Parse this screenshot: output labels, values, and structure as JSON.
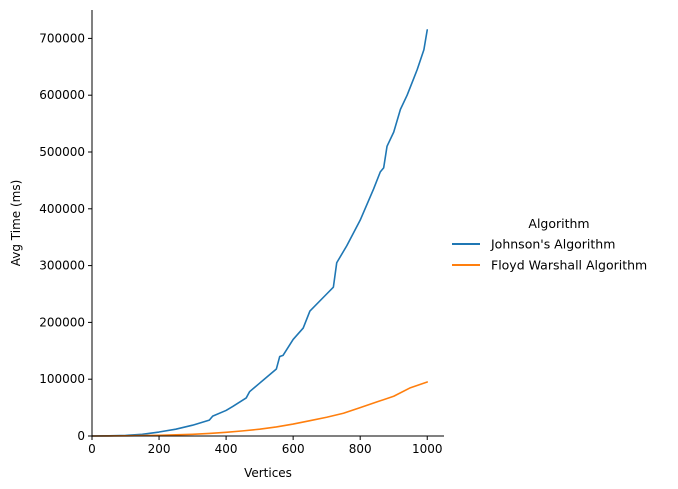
{
  "chart_data": {
    "type": "line",
    "title": "",
    "xlabel": "Vertices",
    "ylabel": "Avg Time (ms)",
    "xlim": [
      0,
      1050
    ],
    "ylim": [
      0,
      750000
    ],
    "xticks": [
      0,
      200,
      400,
      600,
      800,
      1000
    ],
    "yticks": [
      0,
      100000,
      200000,
      300000,
      400000,
      500000,
      600000,
      700000
    ],
    "grid": false,
    "legend": {
      "title": "Algorithm",
      "placement": "outside-right",
      "labels": [
        "Johnson's Algorithm",
        "Floyd Warshall Algorithm"
      ]
    },
    "series": [
      {
        "name": "Johnson's Algorithm",
        "color": "#1f77b4",
        "x": [
          0,
          50,
          100,
          150,
          200,
          250,
          300,
          350,
          360,
          400,
          420,
          460,
          470,
          500,
          550,
          560,
          570,
          600,
          630,
          650,
          700,
          720,
          730,
          760,
          800,
          840,
          860,
          870,
          880,
          900,
          920,
          940,
          960,
          970,
          990,
          1000
        ],
        "y": [
          0,
          300,
          1000,
          3000,
          7000,
          12000,
          19000,
          28000,
          35000,
          45000,
          52000,
          67000,
          78000,
          93000,
          118000,
          140000,
          142000,
          170000,
          190000,
          220000,
          250000,
          262000,
          305000,
          335000,
          380000,
          435000,
          465000,
          472000,
          510000,
          535000,
          575000,
          600000,
          630000,
          645000,
          680000,
          715000
        ]
      },
      {
        "name": "Floyd Warshall Algorithm",
        "color": "#ff7f0e",
        "x": [
          0,
          50,
          100,
          150,
          200,
          250,
          300,
          350,
          400,
          450,
          500,
          550,
          600,
          650,
          700,
          750,
          800,
          850,
          900,
          950,
          1000
        ],
        "y": [
          0,
          100,
          300,
          700,
          1200,
          2000,
          3000,
          4500,
          6500,
          9000,
          12000,
          16000,
          21000,
          27000,
          33000,
          40000,
          50000,
          60000,
          70000,
          85000,
          95000
        ]
      }
    ]
  }
}
